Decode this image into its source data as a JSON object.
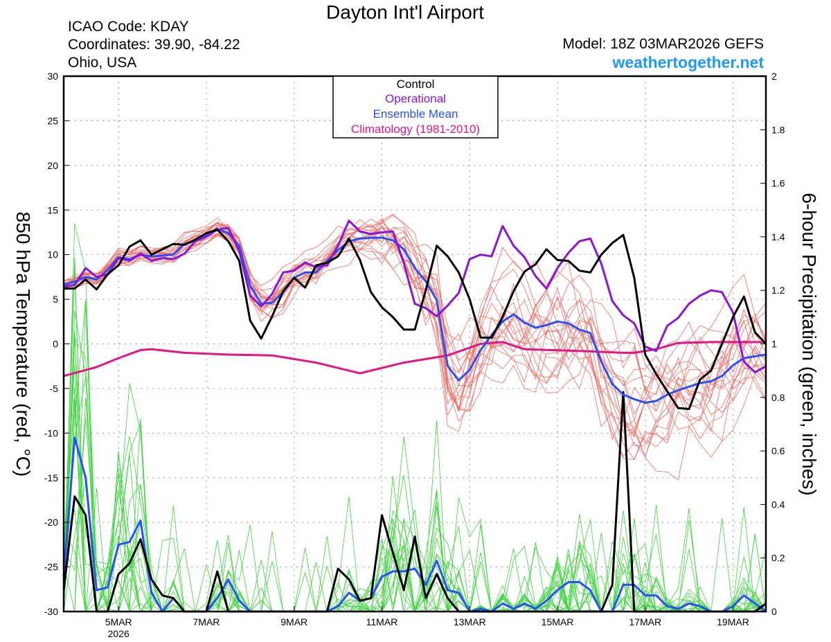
{
  "header": {
    "title": "Dayton Int'l Airport",
    "icao": "ICAO Code: KDAY",
    "coords": "Coordinates: 39.90, -84.22",
    "state": "Ohio, USA",
    "model": "Model: 18Z 03MAR2026 GEFS",
    "site": "weathertogether.net"
  },
  "colors": {
    "control": "#000000",
    "operational": "#8c14d2",
    "ensemble_mean": "#2850ff",
    "climatology": "#e6147f",
    "members_temp": "#f26a62",
    "members_precip": "#3ad43a",
    "site": "#1e9bf0"
  },
  "chart_data": {
    "type": "line",
    "title": "Dayton Int'l Airport",
    "ylabel": "850 hPa Temperature (red, °C)",
    "y2label": "6-hour Precipitation (green, inches)",
    "ylim": [
      -30,
      30
    ],
    "y2lim": [
      0,
      2
    ],
    "yticks": [
      "30",
      "25",
      "20",
      "15",
      "10",
      "5",
      "0",
      "-5",
      "-10",
      "-15",
      "-20",
      "-25",
      "-30"
    ],
    "y2ticks": [
      "2",
      "1.8",
      "1.6",
      "1.4",
      "1.2",
      "1",
      "0.8",
      "0.6",
      "0.4",
      "0.2",
      "0"
    ],
    "xlim": [
      3.75,
      19.75
    ],
    "xticks": [
      {
        "x": 5,
        "label": "5MAR"
      },
      {
        "x": 7,
        "label": "7MAR"
      },
      {
        "x": 9,
        "label": "9MAR"
      },
      {
        "x": 11,
        "label": "11MAR"
      },
      {
        "x": 13,
        "label": "13MAR"
      },
      {
        "x": 15,
        "label": "15MAR"
      },
      {
        "x": 17,
        "label": "17MAR"
      },
      {
        "x": 19,
        "label": "19MAR"
      }
    ],
    "year_label": "2026",
    "grid": true,
    "legend": [
      "Control",
      "Operational",
      "Ensemble Mean",
      "Climatology (1981-2010)"
    ],
    "legend_position": "top-center",
    "temperature": {
      "climatology": [
        [
          3.75,
          -3.6
        ],
        [
          4.5,
          -2.6
        ],
        [
          5.0,
          -1.6
        ],
        [
          5.5,
          -0.7
        ],
        [
          5.75,
          -0.6
        ],
        [
          6.5,
          -1.0
        ],
        [
          7.5,
          -1.2
        ],
        [
          8.5,
          -1.3
        ],
        [
          9.5,
          -2.1
        ],
        [
          10.5,
          -3.3
        ],
        [
          11.5,
          -2.1
        ],
        [
          12.5,
          -1.3
        ],
        [
          13.25,
          0.0
        ],
        [
          13.75,
          0.2
        ],
        [
          14.25,
          -0.6
        ],
        [
          15.5,
          -0.8
        ],
        [
          16.5,
          -1.0
        ],
        [
          16.75,
          -1.0
        ],
        [
          17.25,
          -0.6
        ],
        [
          17.75,
          0.1
        ],
        [
          18.5,
          0.2
        ],
        [
          19.75,
          0.2
        ]
      ],
      "control": [
        [
          3.75,
          6.2
        ],
        [
          4.0,
          6.2
        ],
        [
          4.25,
          7.2
        ],
        [
          4.5,
          6.1
        ],
        [
          4.75,
          7.8
        ],
        [
          5.0,
          8.8
        ],
        [
          5.25,
          10.9
        ],
        [
          5.5,
          11.6
        ],
        [
          5.75,
          10.0
        ],
        [
          6.0,
          10.6
        ],
        [
          6.25,
          11.2
        ],
        [
          6.5,
          11.1
        ],
        [
          6.75,
          11.7
        ],
        [
          7.0,
          12.4
        ],
        [
          7.25,
          12.8
        ],
        [
          7.5,
          11.5
        ],
        [
          7.75,
          9.3
        ],
        [
          8.0,
          2.6
        ],
        [
          8.25,
          0.6
        ],
        [
          8.5,
          3.1
        ],
        [
          8.75,
          5.9
        ],
        [
          9.0,
          7.4
        ],
        [
          9.25,
          6.3
        ],
        [
          9.5,
          8.8
        ],
        [
          9.75,
          9.1
        ],
        [
          10.0,
          9.8
        ],
        [
          10.25,
          11.8
        ],
        [
          10.5,
          9.4
        ],
        [
          10.75,
          5.8
        ],
        [
          11.0,
          4.1
        ],
        [
          11.25,
          3.0
        ],
        [
          11.5,
          1.6
        ],
        [
          11.75,
          1.6
        ],
        [
          12.0,
          6.0
        ],
        [
          12.25,
          11.0
        ],
        [
          12.5,
          9.8
        ],
        [
          12.75,
          8.0
        ],
        [
          13.0,
          5.0
        ],
        [
          13.25,
          0.7
        ],
        [
          13.5,
          0.7
        ],
        [
          13.75,
          3.0
        ],
        [
          14.0,
          5.9
        ],
        [
          14.25,
          8.1
        ],
        [
          14.5,
          8.9
        ],
        [
          14.75,
          10.6
        ],
        [
          15.0,
          9.4
        ],
        [
          15.25,
          9.3
        ],
        [
          15.5,
          8.2
        ],
        [
          15.75,
          8.0
        ],
        [
          16.0,
          10.0
        ],
        [
          16.25,
          11.3
        ],
        [
          16.5,
          12.2
        ],
        [
          16.75,
          7.4
        ],
        [
          17.0,
          -1.2
        ],
        [
          17.25,
          -3.4
        ],
        [
          17.5,
          -5.3
        ],
        [
          17.75,
          -7.2
        ],
        [
          18.0,
          -7.3
        ],
        [
          18.25,
          -4.0
        ],
        [
          18.5,
          -3.0
        ],
        [
          18.75,
          0.0
        ],
        [
          19.0,
          3.0
        ],
        [
          19.25,
          5.3
        ],
        [
          19.5,
          1.3
        ],
        [
          19.75,
          0.0
        ]
      ],
      "operational": [
        [
          3.75,
          6.4
        ],
        [
          4.0,
          6.6
        ],
        [
          4.25,
          8.5
        ],
        [
          4.5,
          7.5
        ],
        [
          4.75,
          7.8
        ],
        [
          5.0,
          9.6
        ],
        [
          5.25,
          9.3
        ],
        [
          5.5,
          10.1
        ],
        [
          5.75,
          9.3
        ],
        [
          6.0,
          9.6
        ],
        [
          6.25,
          9.5
        ],
        [
          6.5,
          10.1
        ],
        [
          6.75,
          11.5
        ],
        [
          7.0,
          12.0
        ],
        [
          7.25,
          12.8
        ],
        [
          7.5,
          13.0
        ],
        [
          7.75,
          10.4
        ],
        [
          8.0,
          5.4
        ],
        [
          8.25,
          4.2
        ],
        [
          8.5,
          5.6
        ],
        [
          8.75,
          8.0
        ],
        [
          9.0,
          8.2
        ],
        [
          9.25,
          9.1
        ],
        [
          9.5,
          8.6
        ],
        [
          9.75,
          8.8
        ],
        [
          10.0,
          11.0
        ],
        [
          10.25,
          13.8
        ],
        [
          10.5,
          12.6
        ],
        [
          10.75,
          12.3
        ],
        [
          11.0,
          12.5
        ],
        [
          11.25,
          12.6
        ],
        [
          11.5,
          9.0
        ],
        [
          11.75,
          4.5
        ],
        [
          12.0,
          4.0
        ],
        [
          12.25,
          3.1
        ],
        [
          12.5,
          4.3
        ],
        [
          12.75,
          5.7
        ],
        [
          13.0,
          9.5
        ],
        [
          13.25,
          10.0
        ],
        [
          13.5,
          9.8
        ],
        [
          13.75,
          13.2
        ],
        [
          14.0,
          11.0
        ],
        [
          14.25,
          9.7
        ],
        [
          14.5,
          7.6
        ],
        [
          14.75,
          6.2
        ],
        [
          15.0,
          8.5
        ],
        [
          15.25,
          10.2
        ],
        [
          15.5,
          11.5
        ],
        [
          15.75,
          11.8
        ],
        [
          16.0,
          9.0
        ],
        [
          16.25,
          4.8
        ],
        [
          16.5,
          3.2
        ],
        [
          16.75,
          2.3
        ],
        [
          17.0,
          -0.3
        ],
        [
          17.25,
          -0.8
        ],
        [
          17.5,
          2.0
        ],
        [
          17.75,
          2.9
        ],
        [
          18.0,
          4.5
        ],
        [
          18.25,
          5.4
        ],
        [
          18.5,
          6.0
        ],
        [
          18.75,
          5.8
        ],
        [
          19.0,
          3.5
        ],
        [
          19.25,
          -2.0
        ],
        [
          19.5,
          -3.2
        ],
        [
          19.75,
          -2.5
        ]
      ],
      "ensemble_mean": [
        [
          3.75,
          6.6
        ],
        [
          4.0,
          7.0
        ],
        [
          4.25,
          7.5
        ],
        [
          4.5,
          7.2
        ],
        [
          4.75,
          8.3
        ],
        [
          5.0,
          9.7
        ],
        [
          5.25,
          9.5
        ],
        [
          5.5,
          10.0
        ],
        [
          5.75,
          9.8
        ],
        [
          6.0,
          9.9
        ],
        [
          6.25,
          10.0
        ],
        [
          6.5,
          11.2
        ],
        [
          6.75,
          11.6
        ],
        [
          7.0,
          12.1
        ],
        [
          7.25,
          12.9
        ],
        [
          7.5,
          12.4
        ],
        [
          7.75,
          11.0
        ],
        [
          8.0,
          6.5
        ],
        [
          8.25,
          4.5
        ],
        [
          8.5,
          4.6
        ],
        [
          8.75,
          5.8
        ],
        [
          9.0,
          7.4
        ],
        [
          9.25,
          8.0
        ],
        [
          9.5,
          8.0
        ],
        [
          9.75,
          9.3
        ],
        [
          10.0,
          10.5
        ],
        [
          10.25,
          11.5
        ],
        [
          10.5,
          11.8
        ],
        [
          10.75,
          11.9
        ],
        [
          11.0,
          11.9
        ],
        [
          11.25,
          11.6
        ],
        [
          11.5,
          10.6
        ],
        [
          11.75,
          8.5
        ],
        [
          12.0,
          7.0
        ],
        [
          12.25,
          4.9
        ],
        [
          12.5,
          -2.5
        ],
        [
          12.75,
          -4.1
        ],
        [
          13.0,
          -2.9
        ],
        [
          13.25,
          -0.7
        ],
        [
          13.5,
          1.0
        ],
        [
          13.75,
          2.5
        ],
        [
          14.0,
          3.3
        ],
        [
          14.25,
          2.4
        ],
        [
          14.5,
          1.8
        ],
        [
          14.75,
          2.1
        ],
        [
          15.0,
          2.5
        ],
        [
          15.25,
          2.3
        ],
        [
          15.5,
          1.6
        ],
        [
          15.75,
          1.2
        ],
        [
          16.0,
          -2.0
        ],
        [
          16.25,
          -4.5
        ],
        [
          16.5,
          -5.7
        ],
        [
          16.75,
          -6.2
        ],
        [
          17.0,
          -6.6
        ],
        [
          17.25,
          -6.4
        ],
        [
          17.5,
          -5.7
        ],
        [
          17.75,
          -5.2
        ],
        [
          18.0,
          -4.8
        ],
        [
          18.25,
          -4.4
        ],
        [
          18.5,
          -4.2
        ],
        [
          18.75,
          -3.6
        ],
        [
          19.0,
          -2.4
        ],
        [
          19.25,
          -1.6
        ],
        [
          19.5,
          -1.4
        ],
        [
          19.75,
          -1.2
        ]
      ]
    },
    "precipitation": {
      "control": [
        [
          3.75,
          0.08
        ],
        [
          4.0,
          0.43
        ],
        [
          4.25,
          0.36
        ],
        [
          4.5,
          0.0
        ],
        [
          4.75,
          0.0
        ],
        [
          5.0,
          0.14
        ],
        [
          5.25,
          0.18
        ],
        [
          5.5,
          0.27
        ],
        [
          5.75,
          0.12
        ],
        [
          6.0,
          0.06
        ],
        [
          6.25,
          0.05
        ],
        [
          6.5,
          0.0
        ],
        [
          6.75,
          0.0
        ],
        [
          7.0,
          0.0
        ],
        [
          7.25,
          0.15
        ],
        [
          7.5,
          0.0
        ],
        [
          7.75,
          0.0
        ],
        [
          9.75,
          0.0
        ],
        [
          10.0,
          0.16
        ],
        [
          10.25,
          0.12
        ],
        [
          10.5,
          0.04
        ],
        [
          10.75,
          0.05
        ],
        [
          11.0,
          0.36
        ],
        [
          11.25,
          0.22
        ],
        [
          11.5,
          0.08
        ],
        [
          11.75,
          0.28
        ],
        [
          12.0,
          0.05
        ],
        [
          12.25,
          0.14
        ],
        [
          12.5,
          0.05
        ],
        [
          12.75,
          0.0
        ],
        [
          13.5,
          0.0
        ],
        [
          15.0,
          0.0
        ],
        [
          16.0,
          0.0
        ],
        [
          16.25,
          0.1
        ],
        [
          16.5,
          0.82
        ],
        [
          16.75,
          0.0
        ],
        [
          17.0,
          0.0
        ],
        [
          19.5,
          0.0
        ],
        [
          19.75,
          0.03
        ]
      ],
      "ensemble_mean": [
        [
          3.75,
          0.13
        ],
        [
          4.0,
          0.65
        ],
        [
          4.25,
          0.5
        ],
        [
          4.5,
          0.08
        ],
        [
          4.75,
          0.09
        ],
        [
          5.0,
          0.25
        ],
        [
          5.25,
          0.26
        ],
        [
          5.5,
          0.34
        ],
        [
          5.75,
          0.07
        ],
        [
          6.0,
          0.0
        ],
        [
          6.25,
          0.05
        ],
        [
          6.5,
          0.0
        ],
        [
          7.0,
          0.0
        ],
        [
          7.25,
          0.05
        ],
        [
          7.5,
          0.12
        ],
        [
          7.75,
          0.04
        ],
        [
          8.0,
          0.0
        ],
        [
          9.75,
          0.0
        ],
        [
          10.0,
          0.02
        ],
        [
          10.25,
          0.07
        ],
        [
          10.5,
          0.04
        ],
        [
          10.75,
          0.05
        ],
        [
          11.0,
          0.13
        ],
        [
          11.25,
          0.15
        ],
        [
          11.5,
          0.15
        ],
        [
          11.75,
          0.16
        ],
        [
          12.0,
          0.1
        ],
        [
          12.25,
          0.19
        ],
        [
          12.5,
          0.08
        ],
        [
          12.75,
          0.07
        ],
        [
          13.0,
          0.0
        ],
        [
          13.25,
          0.01
        ],
        [
          13.5,
          0.0
        ],
        [
          13.75,
          0.03
        ],
        [
          14.0,
          0.01
        ],
        [
          14.25,
          0.03
        ],
        [
          14.5,
          0.01
        ],
        [
          14.75,
          0.04
        ],
        [
          15.0,
          0.08
        ],
        [
          15.25,
          0.11
        ],
        [
          15.5,
          0.11
        ],
        [
          15.75,
          0.08
        ],
        [
          16.0,
          0.0
        ],
        [
          16.25,
          0.0
        ],
        [
          16.5,
          0.1
        ],
        [
          16.75,
          0.1
        ],
        [
          17.0,
          0.06
        ],
        [
          17.25,
          0.06
        ],
        [
          17.5,
          0.02
        ],
        [
          17.75,
          0.01
        ],
        [
          18.0,
          0.03
        ],
        [
          18.25,
          0.02
        ],
        [
          18.5,
          0.0
        ],
        [
          18.75,
          0.0
        ],
        [
          19.0,
          0.02
        ],
        [
          19.25,
          0.06
        ],
        [
          19.5,
          0.03
        ],
        [
          19.75,
          0.0
        ]
      ]
    }
  }
}
